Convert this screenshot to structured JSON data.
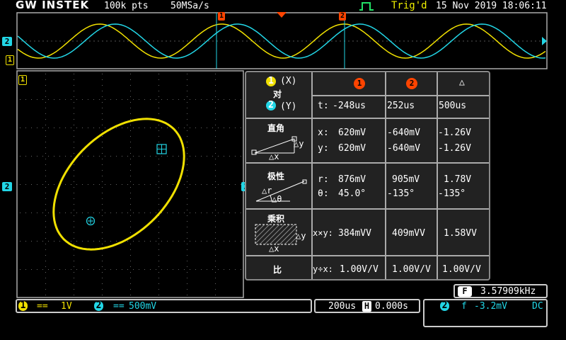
{
  "header": {
    "logo": "GW INSTEK",
    "record_length": "100k pts",
    "sample_rate": "50MSa/s",
    "trigger_status": "Trig'd",
    "datetime": "15 Nov 2019 18:06:11"
  },
  "markers": {
    "cursor1": "1",
    "cursor2": "2",
    "ch1_label": "1",
    "ch2_label": "2"
  },
  "measure_panel": {
    "header_x_label": "(X)",
    "header_vs": "对",
    "header_y_label": "(Y)",
    "col1": "1",
    "col2": "2",
    "col_delta": "△",
    "time_row": {
      "label": "t:",
      "c1": "-248us",
      "c2": "252us",
      "delta": "500us"
    },
    "rect_section": {
      "title": "直角",
      "diagram_dx": "△x",
      "diagram_dy": "△y",
      "x": {
        "label": "x:",
        "c1": "620mV",
        "c2": "-640mV",
        "delta": "-1.26V"
      },
      "y": {
        "label": "y:",
        "c1": "620mV",
        "c2": "-640mV",
        "delta": "-1.26V"
      }
    },
    "polar_section": {
      "title": "极性",
      "diagram_dr": "△r",
      "diagram_dtheta": "△θ",
      "r": {
        "label": "r:",
        "c1": "876mV",
        "c2": "905mV",
        "delta": "1.78V"
      },
      "theta": {
        "label": "θ:",
        "c1": "45.0°",
        "c2": "-135°",
        "delta": "-135°"
      }
    },
    "product_section": {
      "title": "乘积",
      "diagram_dx": "△x",
      "diagram_dy": "△y",
      "xy": {
        "label": "x×y:",
        "c1": "384mVV",
        "c2": "409mVV",
        "delta": "1.58VV"
      }
    },
    "ratio_section": {
      "title": "比",
      "ratio": {
        "label": "y÷x:",
        "c1": "1.00V/V",
        "c2": "1.00V/V",
        "delta": "1.00V/V"
      }
    }
  },
  "frequency": {
    "badge": "F",
    "value": "3.57909kHz"
  },
  "bottom": {
    "ch1_num": "1",
    "ch1_coupling": "==",
    "ch1_scale": "1V",
    "ch2_num": "2",
    "ch2_coupling": "==",
    "ch2_scale": "500mV",
    "timebase": "200us",
    "h_badge": "H",
    "position": "0.000s",
    "trig_ch": "2",
    "trig_slope": "f",
    "trig_level": "-3.2mV",
    "trig_coupling": "DC"
  },
  "colors": {
    "ch1": "#f0e000",
    "ch2": "#22d6e6",
    "cursor_marker": "#ff4400"
  }
}
